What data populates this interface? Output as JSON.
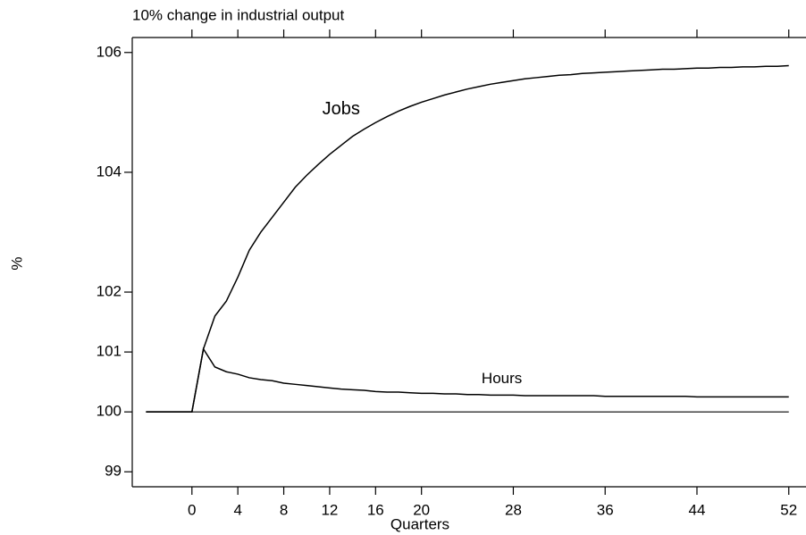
{
  "chart_data": {
    "type": "line",
    "title": "10% change in industrial output",
    "x_label": "Quarters",
    "y_label": "%",
    "x": [
      -4,
      -3,
      -2,
      -1,
      0,
      1,
      2,
      3,
      4,
      5,
      6,
      7,
      8,
      9,
      10,
      11,
      12,
      13,
      14,
      15,
      16,
      17,
      18,
      19,
      20,
      21,
      22,
      23,
      24,
      25,
      26,
      27,
      28,
      29,
      30,
      31,
      32,
      33,
      34,
      35,
      36,
      37,
      38,
      39,
      40,
      41,
      42,
      43,
      44,
      45,
      46,
      47,
      48,
      49,
      50,
      51,
      52
    ],
    "series": [
      {
        "name": "Jobs",
        "color": "#000000",
        "values": [
          100,
          100,
          100,
          100,
          100,
          101.05,
          101.6,
          101.85,
          102.25,
          102.7,
          103.0,
          103.25,
          103.5,
          103.75,
          103.95,
          104.13,
          104.3,
          104.45,
          104.6,
          104.72,
          104.83,
          104.93,
          105.02,
          105.1,
          105.17,
          105.23,
          105.29,
          105.34,
          105.39,
          105.43,
          105.47,
          105.5,
          105.53,
          105.56,
          105.58,
          105.6,
          105.62,
          105.63,
          105.65,
          105.66,
          105.67,
          105.68,
          105.69,
          105.7,
          105.71,
          105.72,
          105.72,
          105.73,
          105.74,
          105.74,
          105.75,
          105.75,
          105.76,
          105.76,
          105.77,
          105.77,
          105.78
        ]
      },
      {
        "name": "Hours",
        "color": "#000000",
        "values": [
          100,
          100,
          100,
          100,
          100,
          101.05,
          100.75,
          100.67,
          100.63,
          100.57,
          100.54,
          100.52,
          100.48,
          100.46,
          100.44,
          100.42,
          100.4,
          100.38,
          100.37,
          100.36,
          100.34,
          100.33,
          100.33,
          100.32,
          100.31,
          100.31,
          100.3,
          100.3,
          100.29,
          100.29,
          100.28,
          100.28,
          100.28,
          100.27,
          100.27,
          100.27,
          100.27,
          100.27,
          100.27,
          100.27,
          100.26,
          100.26,
          100.26,
          100.26,
          100.26,
          100.26,
          100.26,
          100.26,
          100.25,
          100.25,
          100.25,
          100.25,
          100.25,
          100.25,
          100.25,
          100.25,
          100.25
        ]
      }
    ],
    "hline": 100,
    "xlim": [
      -5.2,
      53.5
    ],
    "xticks": [
      0,
      4,
      8,
      12,
      16,
      20,
      28,
      36,
      44,
      52
    ],
    "ylim": [
      98.75,
      106.25
    ],
    "yticks": [
      99,
      100,
      101,
      102,
      104,
      106
    ],
    "grid": false
  }
}
